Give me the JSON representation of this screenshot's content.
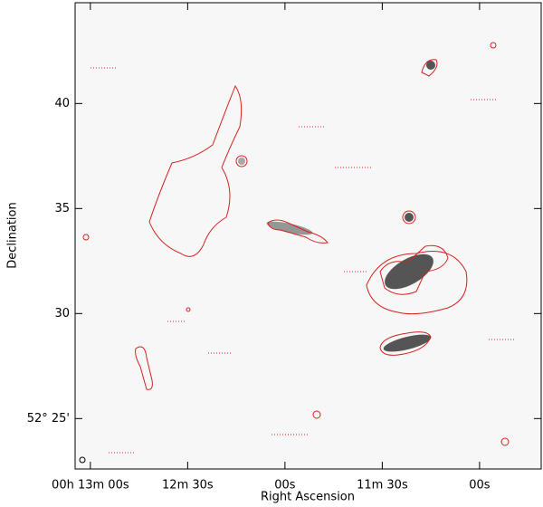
{
  "chart_data": {
    "type": "image",
    "xlabel": "Right Ascension",
    "ylabel": "Declination",
    "xlim": [
      784.7,
      641
    ],
    "ylim": [
      22.6,
      44.8
    ],
    "xticks": [
      {
        "value": 780,
        "label": "00h 13m 00s"
      },
      {
        "value": 750,
        "label": "12m 30s"
      },
      {
        "value": 720,
        "label": "00s"
      },
      {
        "value": 690,
        "label": "11m 30s"
      },
      {
        "value": 660,
        "label": "00s"
      }
    ],
    "yticks": [
      {
        "value": 25,
        "label": "52° 25'"
      },
      30,
      35,
      40
    ],
    "color": "#d62020"
  }
}
